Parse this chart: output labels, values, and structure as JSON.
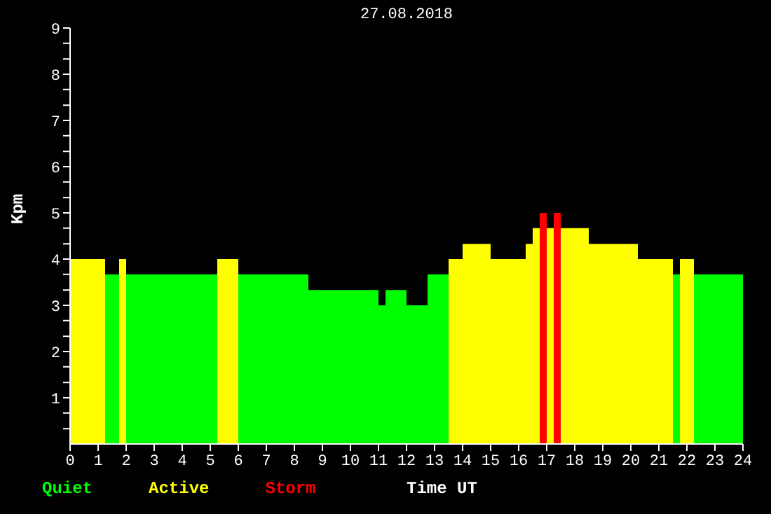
{
  "chart_data": {
    "type": "histogram",
    "title": "27.08.2018",
    "xlabel": "Time UT",
    "ylabel": "Kpm",
    "bins": [
      0,
      1.25,
      1.75,
      2,
      5.25,
      6,
      8.5,
      11,
      11.25,
      12,
      12.75,
      13.5,
      14,
      15,
      16.25,
      16.5,
      16.75,
      17,
      17.25,
      17.5,
      18.5,
      20.25,
      21.5,
      21.75,
      22.25,
      24
    ],
    "series": [
      {
        "name": "Quiet",
        "color": "#00ff00",
        "values": [
          null,
          3.67,
          null,
          3.67,
          null,
          3.67,
          3.33,
          3,
          3.33,
          3,
          3.67,
          null,
          null,
          null,
          null,
          null,
          null,
          null,
          null,
          null,
          null,
          null,
          3.67,
          null,
          3.67
        ]
      },
      {
        "name": "Active",
        "color": "#ffff00",
        "values": [
          4,
          null,
          4,
          null,
          4,
          null,
          null,
          null,
          null,
          null,
          null,
          4,
          4.33,
          4,
          4.33,
          4.67,
          null,
          4.67,
          null,
          4.67,
          4.33,
          4,
          null,
          4,
          null
        ]
      },
      {
        "name": "Storm",
        "color": "#ff0000",
        "values": [
          null,
          null,
          null,
          null,
          null,
          null,
          null,
          null,
          null,
          null,
          null,
          null,
          null,
          null,
          null,
          null,
          5,
          null,
          5,
          null,
          null,
          null,
          null,
          null,
          null
        ]
      }
    ],
    "xlim": [
      0,
      24
    ],
    "xticks": [
      0,
      1,
      2,
      3,
      4,
      5,
      6,
      7,
      8,
      9,
      10,
      11,
      12,
      13,
      14,
      15,
      16,
      17,
      18,
      19,
      20,
      21,
      22,
      23,
      24
    ],
    "ylim": [
      0,
      9
    ],
    "yticks": [
      {
        "value": 0.33,
        "label": null
      },
      {
        "value": 0.67,
        "label": null
      },
      1,
      {
        "value": 1.33,
        "label": null
      },
      {
        "value": 1.67,
        "label": null
      },
      2,
      {
        "value": 2.33,
        "label": null
      },
      {
        "value": 2.67,
        "label": null
      },
      3,
      {
        "value": 3.33,
        "label": null
      },
      {
        "value": 3.67,
        "label": null
      },
      4,
      {
        "value": 4.33,
        "label": null
      },
      {
        "value": 4.67,
        "label": null
      },
      5,
      {
        "value": 5.33,
        "label": null
      },
      {
        "value": 5.67,
        "label": null
      },
      6,
      {
        "value": 6.33,
        "label": null
      },
      {
        "value": 6.67,
        "label": null
      },
      7,
      {
        "value": 7.33,
        "label": null
      },
      {
        "value": 7.67,
        "label": null
      },
      8,
      {
        "value": 8.33,
        "label": null
      },
      {
        "value": 8.67,
        "label": null
      },
      9
    ],
    "grid": false,
    "legend": "bottom left"
  }
}
